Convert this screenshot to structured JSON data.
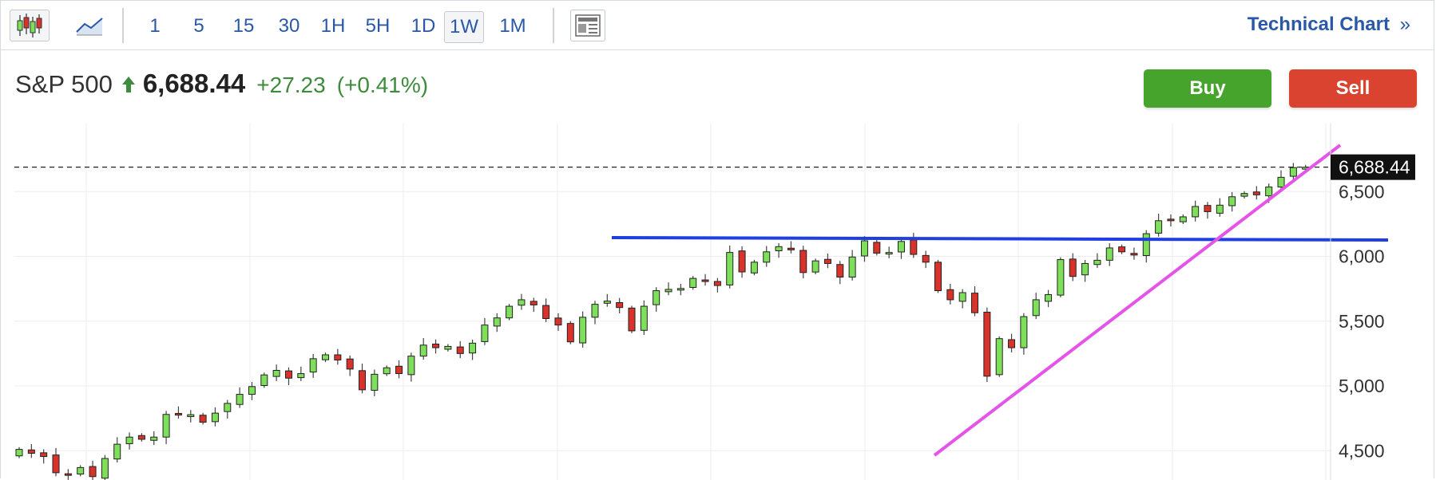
{
  "toolbar": {
    "chart_type_icons": [
      "candlestick-icon",
      "area-chart-icon"
    ],
    "intervals": [
      "1",
      "5",
      "15",
      "30",
      "1H",
      "5H",
      "1D",
      "1W",
      "1M"
    ],
    "active_interval": "1W",
    "layout_icon": "news-layout-icon",
    "technical_chart_label": "Technical Chart",
    "technical_chart_chevron": "»"
  },
  "quote": {
    "name": "S&P 500",
    "direction_icon": "up-arrow-icon",
    "price": "6,688.44",
    "change": "+27.23",
    "change_pct": "(+0.41%)",
    "up_color": "#3d8b3d"
  },
  "actions": {
    "buy_label": "Buy",
    "sell_label": "Sell",
    "buy_color": "#46a32c",
    "sell_color": "#d9432f"
  },
  "chart_data": {
    "type": "candlestick",
    "symbol": "S&P 500",
    "interval": "1W",
    "last_price": 6688.44,
    "last_price_label": "6,688.44",
    "y_ticks": [
      4500,
      5000,
      5500,
      6000,
      6500
    ],
    "y_tick_labels": [
      "4,500",
      "5,000",
      "5,500",
      "6,000",
      "6,500"
    ],
    "ylim": [
      4275,
      6900
    ],
    "grid": true,
    "up_color": "#7ee05a",
    "down_color": "#d9322b",
    "closes": [
      4510,
      4480,
      4455,
      4330,
      4320,
      4370,
      4300,
      4440,
      4550,
      4605,
      4588,
      4605,
      4780,
      4775,
      4778,
      4720,
      4790,
      4865,
      4935,
      4995,
      5085,
      5120,
      5060,
      5095,
      5210,
      5240,
      5200,
      5130,
      4970,
      5090,
      5140,
      5095,
      5230,
      5315,
      5295,
      5305,
      5250,
      5330,
      5470,
      5525,
      5615,
      5665,
      5625,
      5520,
      5470,
      5340,
      5530,
      5630,
      5655,
      5605,
      5425,
      5615,
      5735,
      5745,
      5752,
      5830,
      5810,
      5775,
      6030,
      5880,
      5955,
      6035,
      6075,
      6050,
      5875,
      5965,
      5945,
      5840,
      5995,
      6120,
      6025,
      6030,
      6115,
      6015,
      5955,
      5735,
      5665,
      5720,
      5565,
      5075,
      5365,
      5295,
      5535,
      5665,
      5705,
      5975,
      5845,
      5945,
      5970,
      6065,
      6035,
      6010,
      6175,
      6275,
      6275,
      6305,
      6385,
      6345,
      6395,
      6460,
      6485,
      6475,
      6535,
      6610,
      6685,
      6688
    ]
  }
}
